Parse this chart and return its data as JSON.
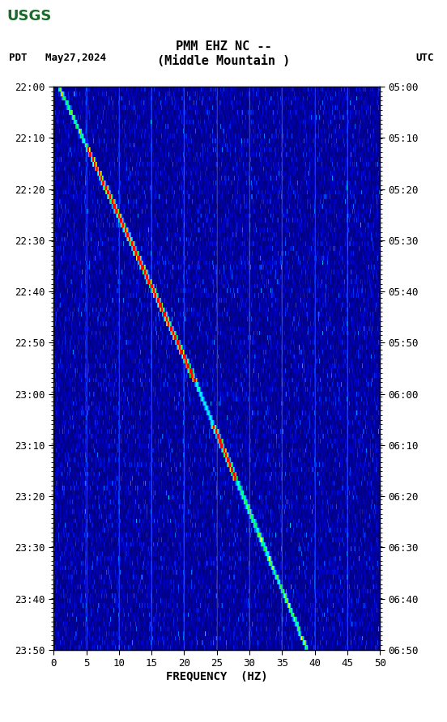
{
  "title_line1": "PMM EHZ NC --",
  "title_line2": "(Middle Mountain )",
  "left_label": "PDT   May27,2024",
  "right_label": "UTC",
  "y_left_ticks": [
    "22:00",
    "22:10",
    "22:20",
    "22:30",
    "22:40",
    "22:50",
    "23:00",
    "23:10",
    "23:20",
    "23:30",
    "23:40",
    "23:50"
  ],
  "y_right_ticks": [
    "05:00",
    "05:10",
    "05:20",
    "05:30",
    "05:40",
    "05:50",
    "06:00",
    "06:10",
    "06:20",
    "06:30",
    "06:40",
    "06:50"
  ],
  "x_ticks": [
    0,
    5,
    10,
    15,
    20,
    25,
    30,
    35,
    40,
    45,
    50
  ],
  "xlabel": "FREQUENCY  (HZ)",
  "freq_min": 0,
  "freq_max": 50,
  "time_steps": 120,
  "freq_steps": 500,
  "background_color": "#000080",
  "plot_bg": "#000080",
  "grid_color": "#4444aa",
  "fig_bg": "#ffffff",
  "usgs_green": "#1a6b2a"
}
